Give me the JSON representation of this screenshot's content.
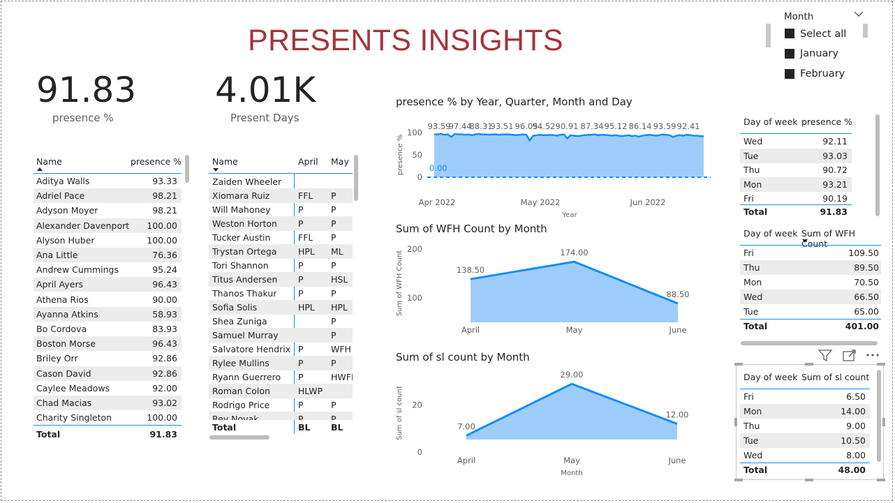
{
  "title": "PRESENTS INSIGHTS",
  "kpis": [
    {
      "value": "91.83",
      "label": "presence %"
    },
    {
      "value": "4.01K",
      "label": "Present Days"
    }
  ],
  "slicer": {
    "title": "Month",
    "items": [
      "Select all",
      "January",
      "February"
    ]
  },
  "presence_table": {
    "headers": [
      "Name",
      "presence %"
    ],
    "rows": [
      [
        "Aditya Walls",
        "93.33"
      ],
      [
        "Adriel Pace",
        "98.21"
      ],
      [
        "Adyson Moyer",
        "98.21"
      ],
      [
        "Alexander Davenport",
        "100.00"
      ],
      [
        "Alyson Huber",
        "100.00"
      ],
      [
        "Ana Little",
        "76.36"
      ],
      [
        "Andrew Cummings",
        "95.24"
      ],
      [
        "April Ayers",
        "96.43"
      ],
      [
        "Athena Rios",
        "90.00"
      ],
      [
        "Ayanna Atkins",
        "58.93"
      ],
      [
        "Bo Cordova",
        "83.93"
      ],
      [
        "Boston Morse",
        "96.43"
      ],
      [
        "Briley Orr",
        "92.86"
      ],
      [
        "Cason David",
        "92.86"
      ],
      [
        "Caylee Meadows",
        "92.00"
      ],
      [
        "Chad Macias",
        "93.02"
      ],
      [
        "Charity Singleton",
        "100.00"
      ]
    ],
    "total": [
      "Total",
      "91.83"
    ]
  },
  "matrix_table": {
    "headers": [
      "Name",
      "April",
      "May"
    ],
    "rows": [
      [
        "Zaiden Wheeler",
        "",
        ""
      ],
      [
        "Xiomara Ruiz",
        "FFL",
        "P"
      ],
      [
        "Will Mahoney",
        "P",
        "P"
      ],
      [
        "Weston Horton",
        "P",
        "P"
      ],
      [
        "Tucker Austin",
        "FFL",
        "P"
      ],
      [
        "Trystan Ortega",
        "HPL",
        "ML"
      ],
      [
        "Tori Shannon",
        "P",
        "P"
      ],
      [
        "Titus Andersen",
        "P",
        "HSL"
      ],
      [
        "Thanos Thakur",
        "P",
        "P"
      ],
      [
        "Sofia Solis",
        "HPL",
        "HPL"
      ],
      [
        "Shea Zuniga",
        "",
        "P"
      ],
      [
        "Samuel Murray",
        "",
        "P"
      ],
      [
        "Salvatore Hendrix",
        "P",
        "WFH"
      ],
      [
        "Rylee Mullins",
        "P",
        "P"
      ],
      [
        "Ryann Guerrero",
        "P",
        "HWFH"
      ],
      [
        "Roman Colon",
        "HLWP",
        ""
      ],
      [
        "Rodrigo Price",
        "P",
        "P"
      ],
      [
        "Rey Novak",
        "P",
        "P"
      ]
    ],
    "total": [
      "Total",
      "BL",
      "BL"
    ]
  },
  "dow_presence_table": {
    "headers": [
      "Day of week",
      "presence %"
    ],
    "rows": [
      [
        "Wed",
        "92.11"
      ],
      [
        "Tue",
        "93.03"
      ],
      [
        "Thu",
        "90.72"
      ],
      [
        "Mon",
        "93.21"
      ],
      [
        "Fri",
        "90.19"
      ]
    ],
    "total": [
      "Total",
      "91.83"
    ]
  },
  "dow_wfh_table": {
    "headers": [
      "Day of week",
      "Sum of WFH Count"
    ],
    "rows": [
      [
        "Fri",
        "109.50"
      ],
      [
        "Thu",
        "89.50"
      ],
      [
        "Mon",
        "70.50"
      ],
      [
        "Wed",
        "66.50"
      ],
      [
        "Tue",
        "65.00"
      ]
    ],
    "total": [
      "Total",
      "401.00"
    ]
  },
  "dow_sl_table": {
    "headers": [
      "Day of week",
      "Sum of sl count"
    ],
    "rows": [
      [
        "Fri",
        "6.50"
      ],
      [
        "Mon",
        "14.00"
      ],
      [
        "Thu",
        "9.00"
      ],
      [
        "Tue",
        "10.50"
      ],
      [
        "Wed",
        "8.00"
      ]
    ],
    "total": [
      "Total",
      "48.00"
    ]
  },
  "chart_data": [
    {
      "type": "area",
      "title": "presence % by Year, Quarter, Month and Day",
      "xlabel": "Year",
      "ylabel": "presence %",
      "x_ticks": [
        "Apr 2022",
        "May 2022",
        "Jun 2022"
      ],
      "y_ticks": [
        0,
        50,
        100
      ],
      "ylim": [
        0,
        100
      ],
      "data_labels": [
        "93.59",
        "97.44",
        "88.31",
        "93.51",
        "96.05",
        "94.52",
        "90.91",
        "87.34",
        "95.12",
        "86.14",
        "93.59",
        "92.41"
      ],
      "reference_value": "0.00",
      "color": "#118dff",
      "fill": "#9ecdfb"
    },
    {
      "type": "area",
      "title": "Sum of WFH Count by Month",
      "xlabel": "",
      "ylabel": "Sum of WFH Count",
      "categories": [
        "April",
        "May",
        "June"
      ],
      "values": [
        138.5,
        174.0,
        88.5
      ],
      "data_labels": [
        "138.50",
        "174.00",
        "88.50"
      ],
      "y_ticks": [
        100,
        200
      ],
      "ylim": [
        50,
        200
      ],
      "color": "#118dff",
      "fill": "#9ecdfb"
    },
    {
      "type": "area",
      "title": "Sum of sl count by Month",
      "xlabel": "Month",
      "ylabel": "Sum of sl count",
      "categories": [
        "April",
        "May",
        "June"
      ],
      "values": [
        7.0,
        29.0,
        12.0
      ],
      "data_labels": [
        "7.00",
        "29.00",
        "12.00"
      ],
      "y_ticks": [
        0,
        20
      ],
      "ylim": [
        0,
        35
      ],
      "color": "#118dff",
      "fill": "#9ecdfb"
    }
  ]
}
